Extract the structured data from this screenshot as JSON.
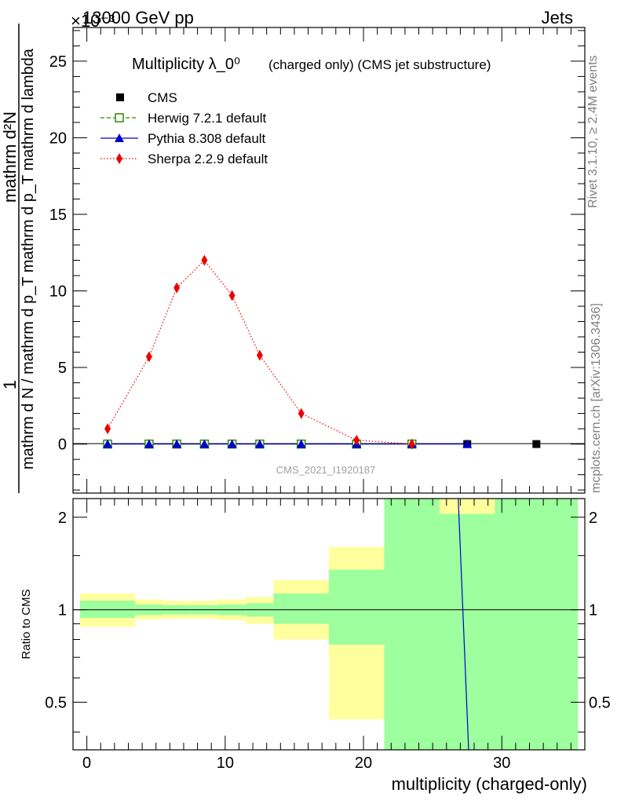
{
  "header": {
    "left": "13000 GeV pp",
    "right": "Jets",
    "exponent": "×10⁻³"
  },
  "side_labels": {
    "top": "Rivet 3.1.10, ≥ 2.4M events",
    "bottom": "mcplots.cern.ch [arXiv:1306.3436]"
  },
  "watermark": "CMS_2021_I1920187",
  "colors": {
    "cms": "#000000",
    "herwig": "#2e8b00",
    "pythia": "#0000cc",
    "sherpa": "#ee0000",
    "band_inner": "#9dff9d",
    "band_outer": "#ffff9d"
  },
  "chart_data": [
    {
      "type": "line",
      "title": "Multiplicity λ_0⁰",
      "title_suffix": "(charged only) (CMS jet substructure)",
      "ylabel_numerator": "1",
      "ylabel_denominator": "mathrm d N / mathrm d p_T mathrm d p_T mathrm d lambda",
      "ylabel_top": "mathrm d²N",
      "xlim": [
        -1,
        36
      ],
      "ylim": [
        -3.2,
        27.2
      ],
      "yticks": [
        0,
        5,
        10,
        15,
        20,
        25
      ],
      "ytick_labels": [
        "0",
        "5",
        "10",
        "15",
        "20",
        "25"
      ],
      "legend_position": "top-left",
      "series": [
        {
          "name": "CMS",
          "style": "marker",
          "x": [
            1.5,
            4.5,
            6.5,
            8.5,
            10.5,
            12.5,
            15.5,
            19.5,
            23.5,
            27.5,
            32.5
          ],
          "y": [
            0,
            0,
            0,
            0,
            0,
            0,
            0,
            0,
            0,
            0,
            0
          ]
        },
        {
          "name": "Herwig 7.2.1 default",
          "style": "dashed",
          "x": [
            1.5,
            4.5,
            6.5,
            8.5,
            10.5,
            12.5,
            15.5,
            19.5,
            23.5
          ],
          "y": [
            0,
            0,
            0,
            0,
            0,
            0,
            0,
            0,
            0
          ]
        },
        {
          "name": "Pythia 8.308 default",
          "style": "solid",
          "x": [
            1.5,
            4.5,
            6.5,
            8.5,
            10.5,
            12.5,
            15.5,
            19.5,
            23.5,
            27.5
          ],
          "y": [
            0,
            0,
            0,
            0,
            0,
            0,
            0,
            0,
            0,
            0
          ]
        },
        {
          "name": "Sherpa 2.2.9 default",
          "style": "dotted",
          "x": [
            1.5,
            4.5,
            6.5,
            8.5,
            10.5,
            12.5,
            15.5,
            19.5,
            23.5
          ],
          "y": [
            1.0,
            5.7,
            10.2,
            12.0,
            9.7,
            5.8,
            2.0,
            0.25,
            0.0
          ]
        }
      ]
    },
    {
      "type": "line",
      "ylabel": "Ratio to CMS",
      "xlabel": "multiplicity (charged-only)",
      "xlim": [
        -1,
        36
      ],
      "ylim": [
        0.35,
        2.3
      ],
      "xticks": [
        0,
        10,
        20,
        30
      ],
      "xtick_labels": [
        "0",
        "10",
        "20",
        "30"
      ],
      "yticks": [
        0.5,
        1,
        2
      ],
      "ytick_labels": [
        "0.5",
        "1",
        "2"
      ],
      "bands": [
        {
          "x0": -0.5,
          "x1": 3.5,
          "inner": [
            0.94,
            1.07
          ],
          "outer": [
            0.88,
            1.13
          ]
        },
        {
          "x0": 3.5,
          "x1": 5.5,
          "inner": [
            0.96,
            1.04
          ],
          "outer": [
            0.93,
            1.08
          ]
        },
        {
          "x0": 5.5,
          "x1": 7.5,
          "inner": [
            0.965,
            1.035
          ],
          "outer": [
            0.935,
            1.07
          ]
        },
        {
          "x0": 7.5,
          "x1": 9.5,
          "inner": [
            0.965,
            1.035
          ],
          "outer": [
            0.935,
            1.07
          ]
        },
        {
          "x0": 9.5,
          "x1": 11.5,
          "inner": [
            0.96,
            1.04
          ],
          "outer": [
            0.925,
            1.08
          ]
        },
        {
          "x0": 11.5,
          "x1": 13.5,
          "inner": [
            0.95,
            1.05
          ],
          "outer": [
            0.9,
            1.1
          ]
        },
        {
          "x0": 13.5,
          "x1": 17.5,
          "inner": [
            0.9,
            1.13
          ],
          "outer": [
            0.8,
            1.25
          ]
        },
        {
          "x0": 17.5,
          "x1": 21.5,
          "inner": [
            0.77,
            1.35
          ],
          "outer": [
            0.44,
            1.6
          ]
        },
        {
          "x0": 21.5,
          "x1": 25.5,
          "inner": [
            0.35,
            2.3
          ],
          "outer": [
            0.35,
            2.3
          ]
        },
        {
          "x0": 25.5,
          "x1": 29.5,
          "inner": [
            0.35,
            2.05
          ],
          "outer": [
            0.35,
            2.3
          ]
        },
        {
          "x0": 29.5,
          "x1": 35.5,
          "inner": [
            0.35,
            2.3
          ],
          "outer": [
            0.35,
            2.3
          ]
        }
      ],
      "series": [
        {
          "name": "Pythia 8.308 default",
          "x": [
            26.85,
            27.6
          ],
          "y": [
            2.3,
            0.35
          ]
        }
      ]
    }
  ]
}
